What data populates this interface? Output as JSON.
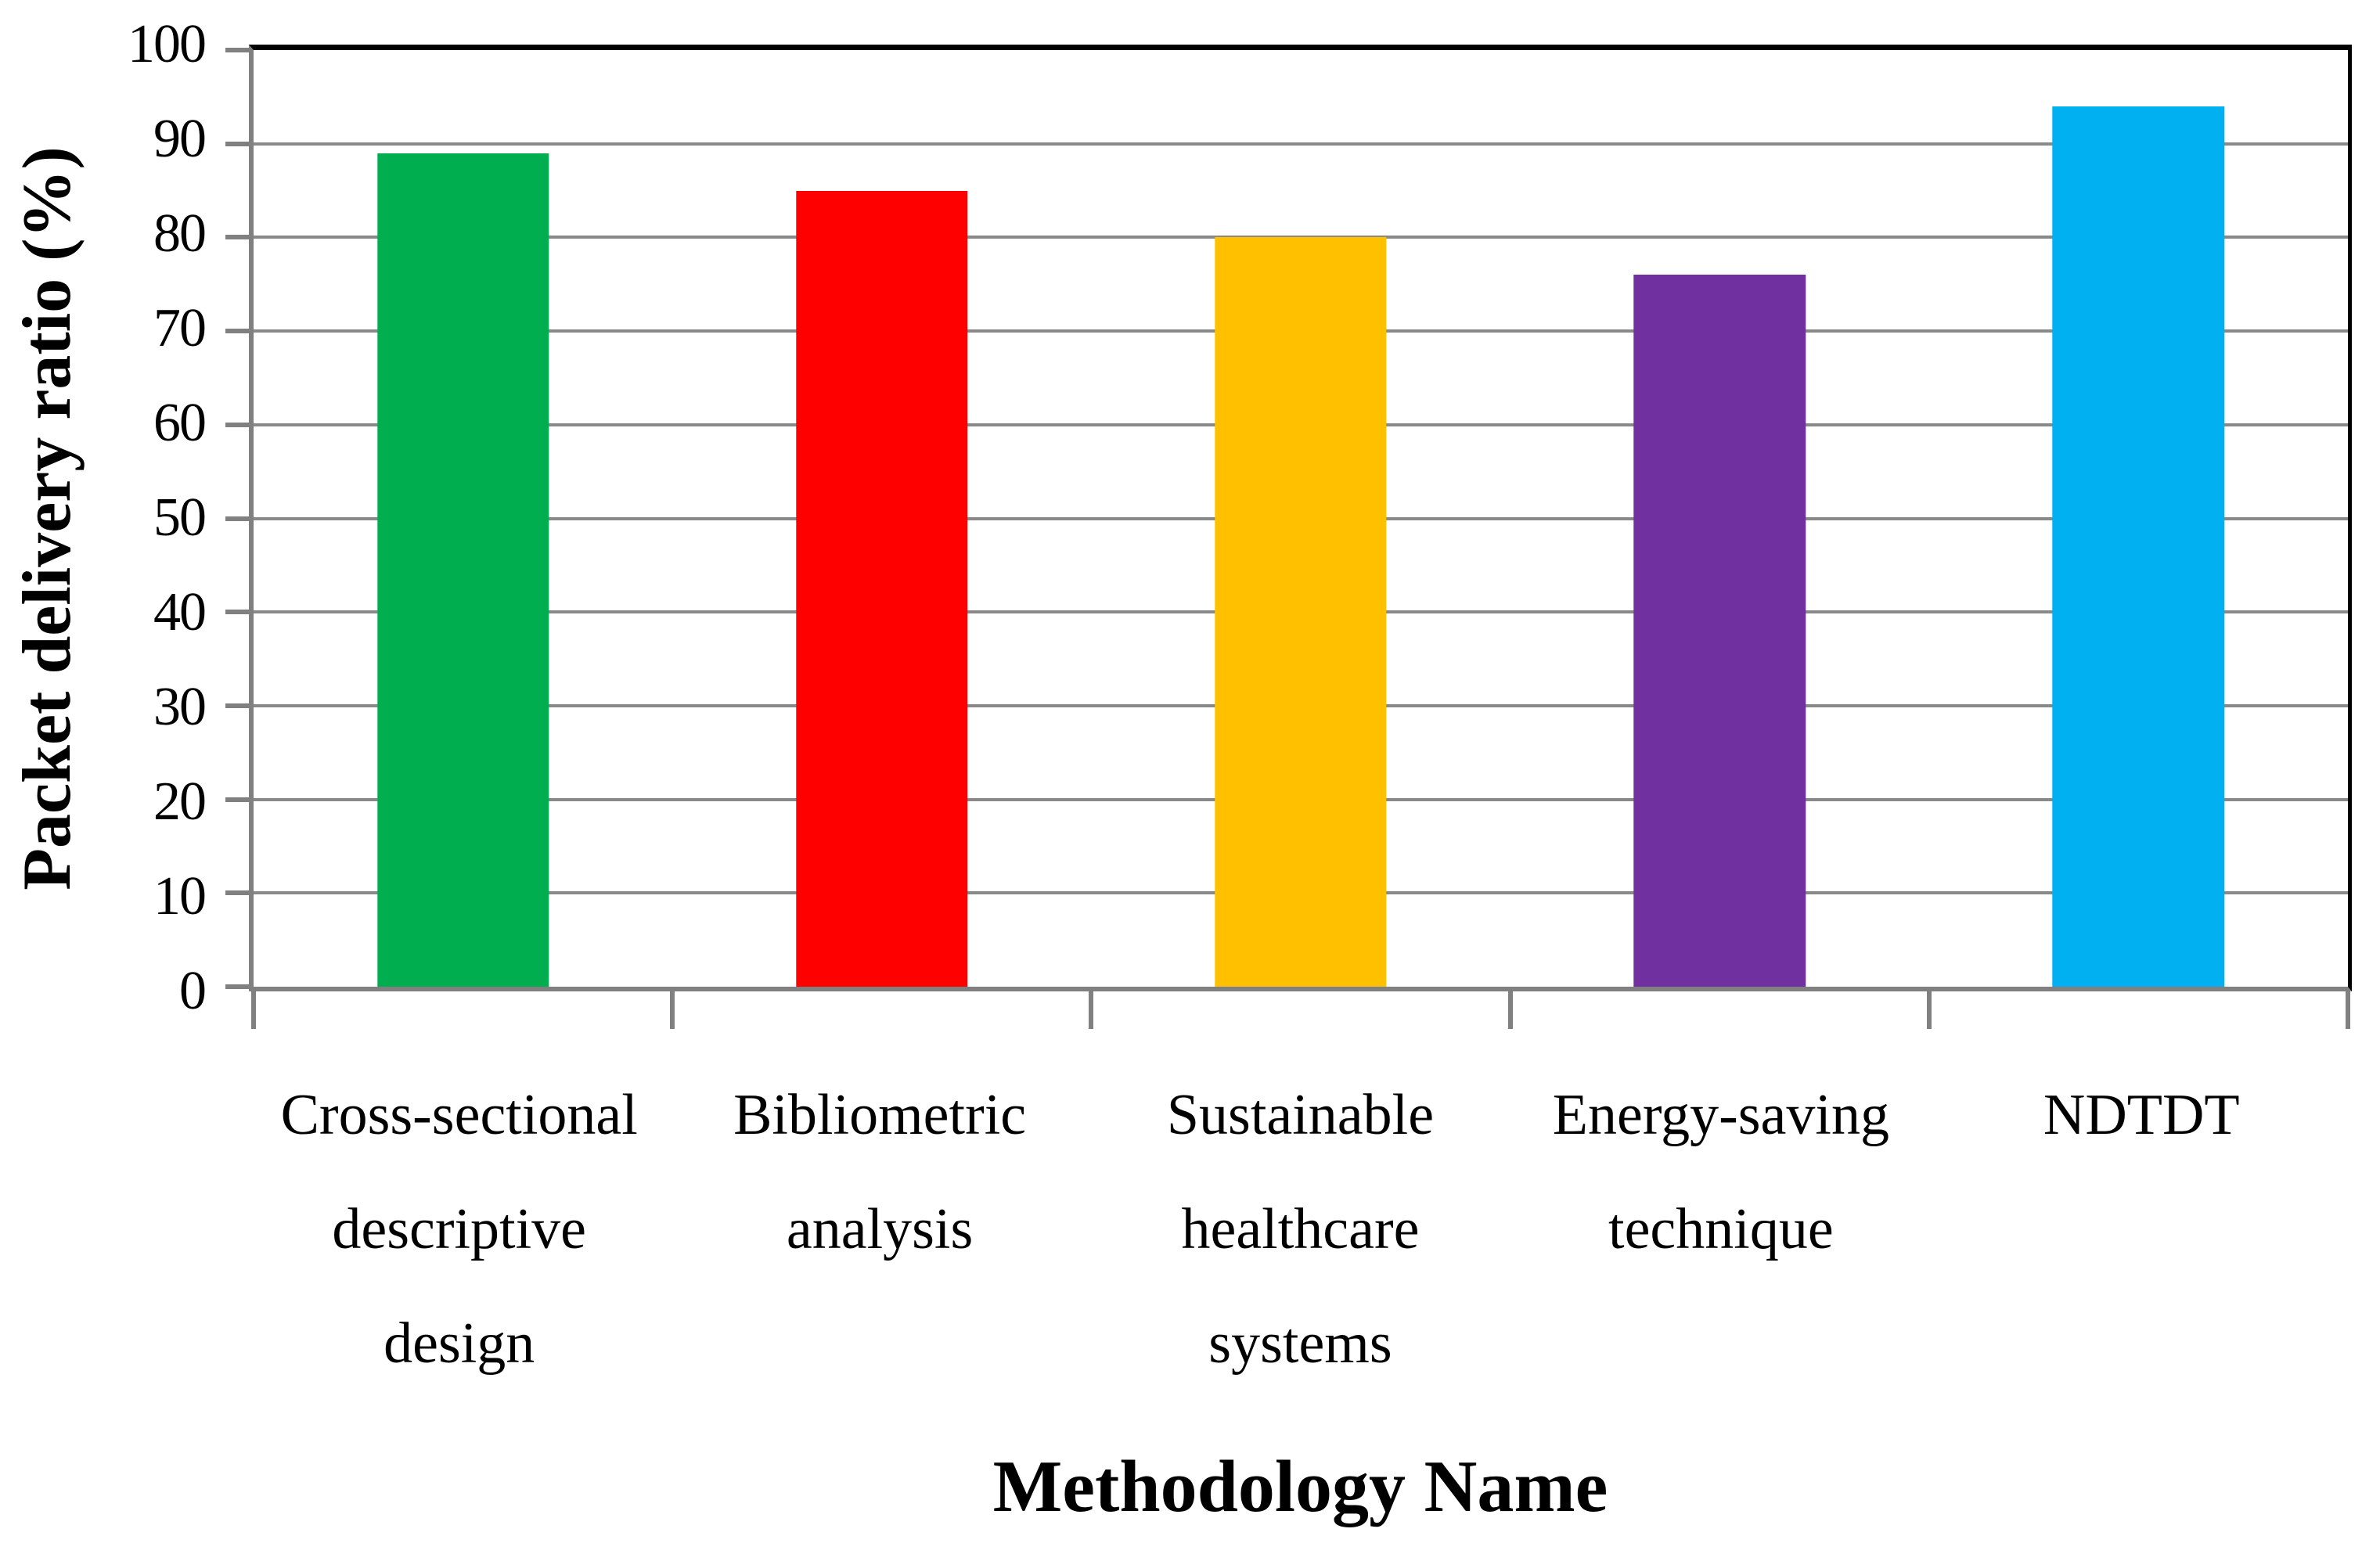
{
  "chart_data": {
    "type": "bar",
    "title": "",
    "xlabel": "Methodology Name",
    "ylabel": "Packet delivery ratio (%)",
    "categories": [
      [
        "Cross-sectional",
        "descriptive",
        "design"
      ],
      [
        "Bibliometric",
        "analysis"
      ],
      [
        "Sustainable",
        "healthcare",
        "systems"
      ],
      [
        "Energy-saving",
        "technique"
      ],
      [
        "NDTDT"
      ]
    ],
    "values": [
      89,
      85,
      80,
      76,
      94
    ],
    "bar_colors": [
      "#00AE50",
      "#FF0000",
      "#FFC000",
      "#7030A0",
      "#00B0F0"
    ],
    "ylim": [
      0,
      100
    ],
    "ytick_step": 10,
    "ytick_labels": [
      "0",
      "10",
      "20",
      "30",
      "40",
      "50",
      "60",
      "70",
      "80",
      "90",
      "100"
    ],
    "grid": true,
    "legend": false
  },
  "style_colors": {
    "gridline": "#898989",
    "axis": "#808080",
    "border": "#000000",
    "background": "#FFFFFF"
  }
}
